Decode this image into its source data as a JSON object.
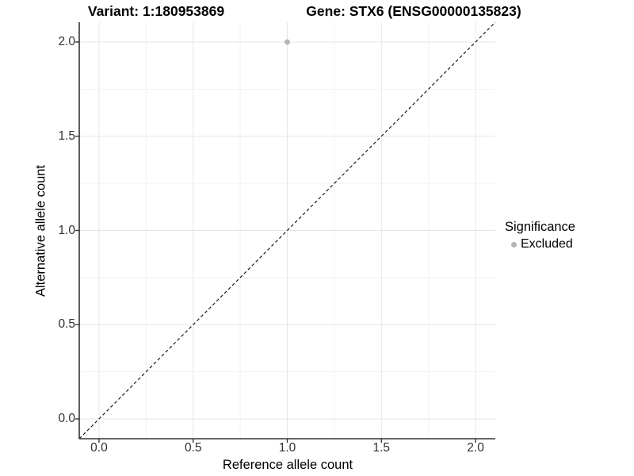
{
  "chart_data": {
    "type": "scatter",
    "title_left": "Variant: 1:180953869",
    "title_right": "Gene: STX6 (ENSG00000135823)",
    "xlabel": "Reference allele count",
    "ylabel": "Alternative allele count",
    "xlim": [
      -0.105,
      2.105
    ],
    "ylim": [
      -0.105,
      2.105
    ],
    "x_ticks": {
      "values": [
        0,
        0.5,
        1,
        1.5,
        2
      ],
      "labels": [
        "0.0",
        "0.5",
        "1.0",
        "1.5",
        "2.0"
      ]
    },
    "y_ticks": {
      "values": [
        0,
        0.5,
        1,
        1.5,
        2
      ],
      "labels": [
        "0.0",
        "0.5",
        "1.0",
        "1.5",
        "2.0"
      ]
    },
    "minor_grid": [
      0.25,
      0.75,
      1.25,
      1.75
    ],
    "grid": true,
    "series": [
      {
        "name": "Excluded",
        "color": "#b5b5b5",
        "marker": "circle",
        "points": [
          {
            "x": 1.0,
            "y": 2.0
          }
        ]
      }
    ],
    "reference_line": {
      "type": "identity",
      "equation": "y = x",
      "style": "dashed",
      "color": "#1a1a1a"
    },
    "legend": {
      "title": "Significance",
      "position": "right",
      "items": [
        {
          "label": "Excluded",
          "color": "#b5b5b5",
          "marker": "circle"
        }
      ]
    },
    "colors": {
      "background": "#ffffff",
      "grid_major": "#e6e6e6",
      "grid_minor": "#f2f2f2",
      "axis_line": "#333333",
      "tick_mark": "#333333",
      "tick_label": "#303030"
    }
  }
}
